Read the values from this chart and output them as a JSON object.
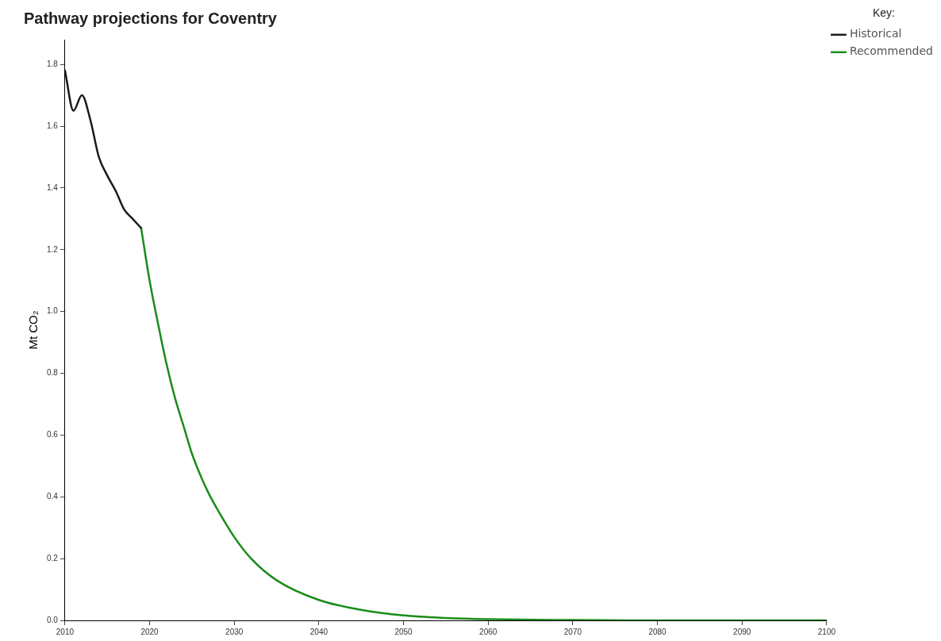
{
  "chart_data": {
    "type": "line",
    "title": "Pathway projections for Coventry",
    "ylabel": "Mt CO₂",
    "legend_title": "Key:",
    "legend": "top right",
    "grid": false,
    "marker": "none",
    "line_style": "solid",
    "xlim": [
      2010,
      2100
    ],
    "xticks": [
      2010,
      2020,
      2030,
      2040,
      2050,
      2060,
      2070,
      2080,
      2090,
      2100
    ],
    "ylim": [
      0,
      1.88
    ],
    "yticks": [
      {
        "value": 0,
        "label": "0.0"
      },
      0.2,
      0.4,
      0.6,
      0.8,
      {
        "value": 1,
        "label": "1.0"
      },
      1.2,
      1.4,
      1.6,
      1.8
    ],
    "series": [
      {
        "name": "Historical",
        "color": "#1a1a1a",
        "x": [
          2010,
          2011,
          2012,
          2013,
          2014,
          2015,
          2016,
          2017,
          2018,
          2019
        ],
        "values": [
          1.78,
          1.65,
          1.7,
          1.62,
          1.5,
          1.44,
          1.39,
          1.33,
          1.3,
          1.27
        ]
      },
      {
        "name": "Recommended",
        "color": "#1a8c1a",
        "x": [
          2019,
          2020,
          2021,
          2022,
          2023,
          2024,
          2025,
          2026,
          2027,
          2028,
          2030,
          2032,
          2035,
          2040,
          2045,
          2050,
          2055,
          2060,
          2070,
          2080,
          2090,
          2100
        ],
        "values": [
          1.27,
          1.1,
          0.96,
          0.83,
          0.72,
          0.63,
          0.54,
          0.47,
          0.41,
          0.36,
          0.27,
          0.2,
          0.13,
          0.066,
          0.034,
          0.016,
          0.008,
          0.004,
          0.001,
          0,
          0,
          0
        ]
      }
    ]
  }
}
